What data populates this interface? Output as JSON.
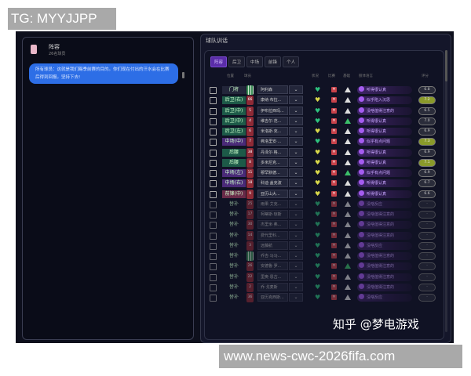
{
  "overlay": {
    "tg": "TG: MYYJJPP",
    "url": "www.news-cwc-2026fifa.com",
    "watermark": "知乎 @梦电游戏"
  },
  "chat": {
    "sender": "阵容",
    "subtitle": "26名球员",
    "message": "所有球员：这就是我们踢季前赛的目的。你们现在付出的汗水会在比赛后得到回报。坚持下去!"
  },
  "panel": {
    "title": "球队训话",
    "tabs": [
      "阵容",
      "后卫",
      "中场",
      "前锋",
      "个人"
    ],
    "active_tab": "阵容",
    "columns": {
      "position": "位置",
      "player": "球员",
      "condition": "状况",
      "match": "比赛",
      "base": "基础",
      "body_language": "肢体语言",
      "rating": "评分"
    }
  },
  "colors": {
    "accent": "#5a2da8",
    "bubble": "#2d6ee6",
    "heart_green": "#2ec27e",
    "heart_yellow": "#d8d84a",
    "rating_high": "#8a9a2a"
  },
  "rows": [
    {
      "pos": "门将",
      "num": "",
      "gk": true,
      "name": "阿利森",
      "heart": "green",
      "tri": "gray",
      "msg": "听得很认真",
      "rating": "6.8",
      "hi": false,
      "sub": false
    },
    {
      "pos": "后卫(右)",
      "num": "66",
      "name": "康纳·布拉...",
      "heart": "yellow",
      "tri": "gray",
      "msg": "似乎陷入沉思",
      "rating": "7.2",
      "hi": true,
      "sub": false
    },
    {
      "pos": "后卫(中)",
      "num": "5",
      "name": "伊布拉西玛...",
      "heart": "green",
      "tri": "gray",
      "msg": "没啥值得注意的",
      "rating": "6.5",
      "hi": false,
      "sub": false
    },
    {
      "pos": "后卫(中)",
      "num": "4",
      "name": "维吉尔·范...",
      "heart": "green",
      "tri": "green",
      "msg": "听得很认真",
      "rating": "7.0",
      "hi": false,
      "sub": false
    },
    {
      "pos": "后卫(左)",
      "num": "6",
      "name": "米洛斯·克...",
      "heart": "yellow",
      "tri": "gray",
      "msg": "听得很认真",
      "rating": "6.9",
      "hi": false,
      "sub": false
    },
    {
      "pos": "中场(中)",
      "num": "7",
      "name": "弗洛里安·...",
      "heart": "green",
      "tri": "gray",
      "msg": "似乎有点问题",
      "rating": "7.3",
      "hi": true,
      "sub": false
    },
    {
      "pos": "后腰",
      "num": "38",
      "name": "丹泽尔·格...",
      "heart": "yellow",
      "tri": "gray",
      "msg": "听得很认真",
      "rating": "6.9",
      "hi": false,
      "sub": false
    },
    {
      "pos": "后腰",
      "num": "8",
      "name": "多米尼克...",
      "heart": "yellow",
      "tri": "gray",
      "msg": "听得很认真",
      "rating": "7.1",
      "hi": true,
      "sub": false
    },
    {
      "pos": "中场(左)",
      "num": "11",
      "name": "穆罕默德...",
      "heart": "yellow",
      "tri": "green",
      "msg": "似乎有点问题",
      "rating": "6.9",
      "hi": false,
      "sub": false
    },
    {
      "pos": "中场(右)",
      "num": "18",
      "name": "科迪·盖克波",
      "heart": "yellow",
      "tri": "gray",
      "msg": "听得很认真",
      "rating": "6.7",
      "hi": false,
      "sub": false
    },
    {
      "pos": "前锋(中)",
      "num": "9",
      "name": "亚历山大...",
      "heart": "yellow",
      "tri": "gray",
      "msg": "听得很认真",
      "rating": "6.6",
      "hi": false,
      "sub": false
    },
    {
      "pos": "替补",
      "num": "25",
      "name": "雨果·艾克...",
      "heart": "green",
      "tri": "gray",
      "msg": "没啥反应",
      "rating": "-",
      "hi": false,
      "sub": true
    },
    {
      "pos": "替补",
      "num": "17",
      "name": "柯蒂斯·琼斯",
      "heart": "green",
      "tri": "gray",
      "msg": "没啥值得注意的",
      "rating": "-",
      "hi": false,
      "sub": true
    },
    {
      "pos": "替补",
      "num": "30",
      "name": "杰里米·弗...",
      "heart": "green",
      "tri": "gray",
      "msg": "没啥值得注意的",
      "rating": "-",
      "hi": false,
      "sub": true
    },
    {
      "pos": "替补",
      "num": "14",
      "name": "费代里科...",
      "heart": "green",
      "tri": "gray",
      "msg": "没啥值得注意的",
      "rating": "-",
      "hi": false,
      "sub": true
    },
    {
      "pos": "替补",
      "num": "3",
      "name": "远藤航",
      "heart": "green",
      "tri": "gray",
      "msg": "没啥反应",
      "rating": "-",
      "hi": false,
      "sub": true
    },
    {
      "pos": "替补",
      "num": "",
      "gk": true,
      "name": "乔吉·马马...",
      "heart": "green",
      "tri": "gray",
      "msg": "没啥值得注意的",
      "rating": "-",
      "hi": false,
      "sub": true
    },
    {
      "pos": "替补",
      "num": "26",
      "name": "安德鲁·罗...",
      "heart": "green",
      "tri": "green",
      "msg": "没啥值得注意的",
      "rating": "-",
      "hi": false,
      "sub": true
    },
    {
      "pos": "替补",
      "num": "22",
      "name": "里奥·恩古...",
      "heart": "green",
      "tri": "gray",
      "msg": "没啥值得注意的",
      "rating": "-",
      "hi": false,
      "sub": true
    },
    {
      "pos": "替补",
      "num": "2",
      "name": "乔·戈麦斯",
      "heart": "green",
      "tri": "gray",
      "msg": "没啥值得注意的",
      "rating": "-",
      "hi": false,
      "sub": true
    },
    {
      "pos": "替补",
      "num": "36",
      "name": "亚历克西斯...",
      "heart": "green",
      "tri": "gray",
      "msg": "没啥反应",
      "rating": "-",
      "hi": false,
      "sub": true
    }
  ]
}
